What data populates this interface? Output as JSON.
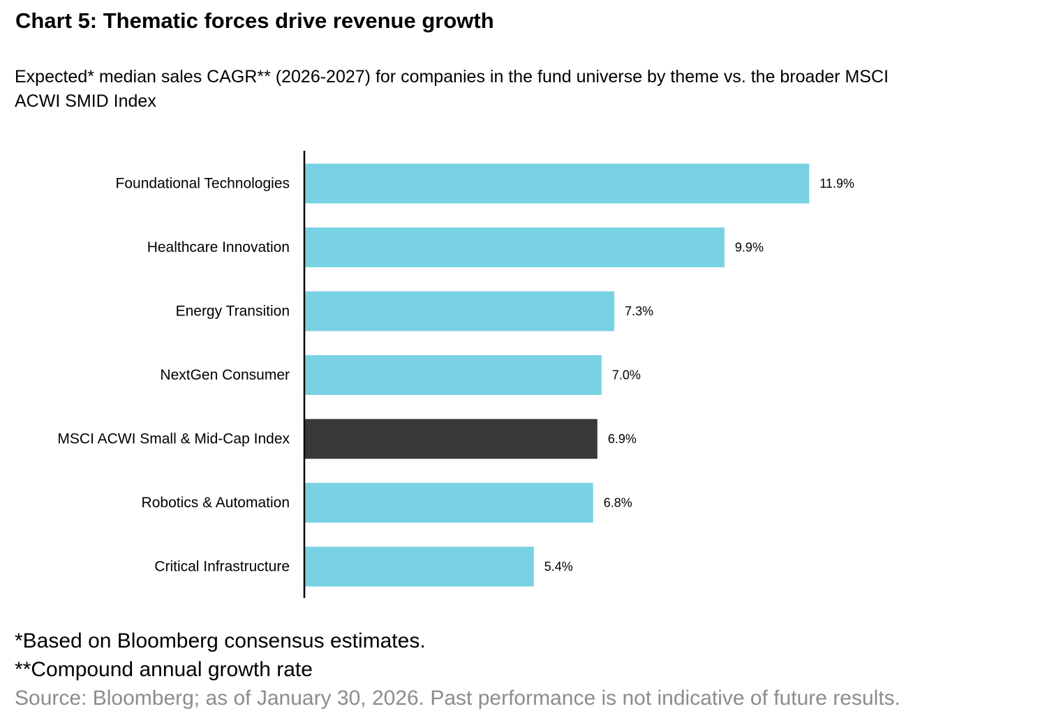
{
  "title": "Chart 5: Thematic forces drive revenue growth",
  "subtitle": "Expected* median sales CAGR** (2026-2027) for companies in the fund universe by theme vs. the broader MSCI ACWI SMID Index",
  "footnotes": {
    "note1": "*Based on Bloomberg consensus estimates.",
    "note2": "**Compound annual growth rate",
    "source": "Source: Bloomberg; as of January 30, 2026. Past performance is not indicative of future results."
  },
  "colors": {
    "theme_bar": "#79d2e4",
    "index_bar": "#383a37",
    "axis": "#000000"
  },
  "chart_data": {
    "type": "bar",
    "orientation": "horizontal",
    "title": "",
    "xlabel": "",
    "ylabel": "",
    "xlim": [
      0,
      14
    ],
    "grid": false,
    "legend": "none",
    "categories": [
      "Foundational Technologies",
      "Healthcare Innovation",
      "Energy Transition",
      "NextGen Consumer",
      "MSCI ACWI Small & Mid-Cap Index",
      "Robotics & Automation",
      "Critical Infrastructure"
    ],
    "values": [
      11.9,
      9.9,
      7.3,
      7.0,
      6.9,
      6.8,
      5.4
    ],
    "value_labels": [
      "11.9%",
      "9.9%",
      "7.3%",
      "7.0%",
      "6.9%",
      "6.8%",
      "5.4%"
    ],
    "bar_types": [
      "theme",
      "theme",
      "theme",
      "theme",
      "index",
      "theme",
      "theme"
    ]
  }
}
